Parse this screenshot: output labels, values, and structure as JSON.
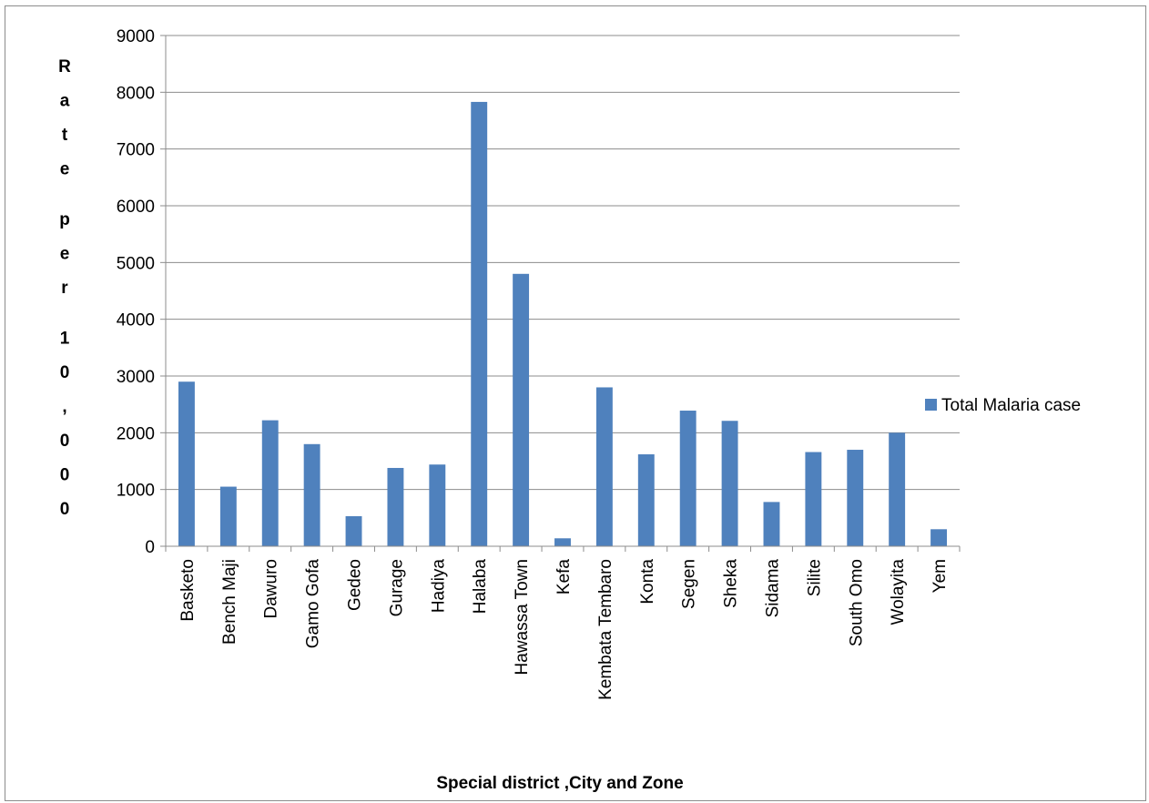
{
  "chart_data": {
    "type": "bar",
    "categories": [
      "Basketo",
      "Bench Maji",
      "Dawuro",
      "Gamo Gofa",
      "Gedeo",
      "Gurage",
      "Hadiya",
      "Halaba",
      "Hawassa Town",
      "Kefa",
      "Kembata Tembaro",
      "Konta",
      "Segen",
      "Sheka",
      "Sidama",
      "Silite",
      "South Omo",
      "Wolayita",
      "Yem"
    ],
    "series": [
      {
        "name": "Total Malaria case",
        "color": "#4f81bd",
        "values": [
          2900,
          1050,
          2220,
          1800,
          530,
          1380,
          1440,
          7830,
          4800,
          140,
          2800,
          1620,
          2390,
          2210,
          780,
          1660,
          1700,
          2000,
          300
        ]
      }
    ],
    "title": "",
    "xlabel": "Special  district ,City and Zone",
    "ylabel": "Rate per 10,000",
    "ylim": [
      0,
      9000
    ],
    "yticks": [
      0,
      1000,
      2000,
      3000,
      4000,
      5000,
      6000,
      7000,
      8000,
      9000
    ],
    "grid": true,
    "legend_position": "right"
  }
}
